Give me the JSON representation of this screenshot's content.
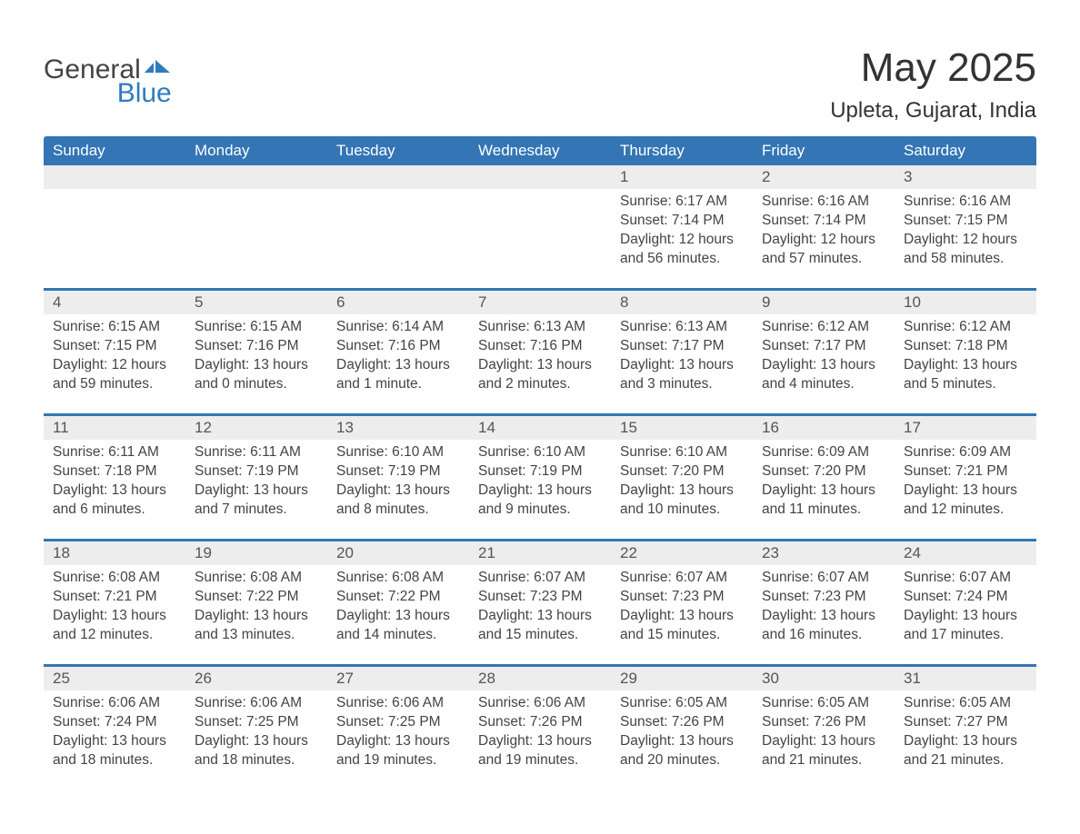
{
  "logo": {
    "text1": "General",
    "text2": "Blue"
  },
  "title": "May 2025",
  "location": "Upleta, Gujarat, India",
  "colors": {
    "header_bg": "#3375b5",
    "header_text": "#ffffff",
    "daynum_bg": "#ededed",
    "week_border": "#3375b5",
    "text": "#3a3a3a",
    "logo_blue": "#2f7bbf"
  },
  "day_headers": [
    "Sunday",
    "Monday",
    "Tuesday",
    "Wednesday",
    "Thursday",
    "Friday",
    "Saturday"
  ],
  "weeks": [
    [
      {
        "day": "",
        "sunrise": "",
        "sunset": "",
        "daylight": ""
      },
      {
        "day": "",
        "sunrise": "",
        "sunset": "",
        "daylight": ""
      },
      {
        "day": "",
        "sunrise": "",
        "sunset": "",
        "daylight": ""
      },
      {
        "day": "",
        "sunrise": "",
        "sunset": "",
        "daylight": ""
      },
      {
        "day": "1",
        "sunrise": "Sunrise: 6:17 AM",
        "sunset": "Sunset: 7:14 PM",
        "daylight": "Daylight: 12 hours and 56 minutes."
      },
      {
        "day": "2",
        "sunrise": "Sunrise: 6:16 AM",
        "sunset": "Sunset: 7:14 PM",
        "daylight": "Daylight: 12 hours and 57 minutes."
      },
      {
        "day": "3",
        "sunrise": "Sunrise: 6:16 AM",
        "sunset": "Sunset: 7:15 PM",
        "daylight": "Daylight: 12 hours and 58 minutes."
      }
    ],
    [
      {
        "day": "4",
        "sunrise": "Sunrise: 6:15 AM",
        "sunset": "Sunset: 7:15 PM",
        "daylight": "Daylight: 12 hours and 59 minutes."
      },
      {
        "day": "5",
        "sunrise": "Sunrise: 6:15 AM",
        "sunset": "Sunset: 7:16 PM",
        "daylight": "Daylight: 13 hours and 0 minutes."
      },
      {
        "day": "6",
        "sunrise": "Sunrise: 6:14 AM",
        "sunset": "Sunset: 7:16 PM",
        "daylight": "Daylight: 13 hours and 1 minute."
      },
      {
        "day": "7",
        "sunrise": "Sunrise: 6:13 AM",
        "sunset": "Sunset: 7:16 PM",
        "daylight": "Daylight: 13 hours and 2 minutes."
      },
      {
        "day": "8",
        "sunrise": "Sunrise: 6:13 AM",
        "sunset": "Sunset: 7:17 PM",
        "daylight": "Daylight: 13 hours and 3 minutes."
      },
      {
        "day": "9",
        "sunrise": "Sunrise: 6:12 AM",
        "sunset": "Sunset: 7:17 PM",
        "daylight": "Daylight: 13 hours and 4 minutes."
      },
      {
        "day": "10",
        "sunrise": "Sunrise: 6:12 AM",
        "sunset": "Sunset: 7:18 PM",
        "daylight": "Daylight: 13 hours and 5 minutes."
      }
    ],
    [
      {
        "day": "11",
        "sunrise": "Sunrise: 6:11 AM",
        "sunset": "Sunset: 7:18 PM",
        "daylight": "Daylight: 13 hours and 6 minutes."
      },
      {
        "day": "12",
        "sunrise": "Sunrise: 6:11 AM",
        "sunset": "Sunset: 7:19 PM",
        "daylight": "Daylight: 13 hours and 7 minutes."
      },
      {
        "day": "13",
        "sunrise": "Sunrise: 6:10 AM",
        "sunset": "Sunset: 7:19 PM",
        "daylight": "Daylight: 13 hours and 8 minutes."
      },
      {
        "day": "14",
        "sunrise": "Sunrise: 6:10 AM",
        "sunset": "Sunset: 7:19 PM",
        "daylight": "Daylight: 13 hours and 9 minutes."
      },
      {
        "day": "15",
        "sunrise": "Sunrise: 6:10 AM",
        "sunset": "Sunset: 7:20 PM",
        "daylight": "Daylight: 13 hours and 10 minutes."
      },
      {
        "day": "16",
        "sunrise": "Sunrise: 6:09 AM",
        "sunset": "Sunset: 7:20 PM",
        "daylight": "Daylight: 13 hours and 11 minutes."
      },
      {
        "day": "17",
        "sunrise": "Sunrise: 6:09 AM",
        "sunset": "Sunset: 7:21 PM",
        "daylight": "Daylight: 13 hours and 12 minutes."
      }
    ],
    [
      {
        "day": "18",
        "sunrise": "Sunrise: 6:08 AM",
        "sunset": "Sunset: 7:21 PM",
        "daylight": "Daylight: 13 hours and 12 minutes."
      },
      {
        "day": "19",
        "sunrise": "Sunrise: 6:08 AM",
        "sunset": "Sunset: 7:22 PM",
        "daylight": "Daylight: 13 hours and 13 minutes."
      },
      {
        "day": "20",
        "sunrise": "Sunrise: 6:08 AM",
        "sunset": "Sunset: 7:22 PM",
        "daylight": "Daylight: 13 hours and 14 minutes."
      },
      {
        "day": "21",
        "sunrise": "Sunrise: 6:07 AM",
        "sunset": "Sunset: 7:23 PM",
        "daylight": "Daylight: 13 hours and 15 minutes."
      },
      {
        "day": "22",
        "sunrise": "Sunrise: 6:07 AM",
        "sunset": "Sunset: 7:23 PM",
        "daylight": "Daylight: 13 hours and 15 minutes."
      },
      {
        "day": "23",
        "sunrise": "Sunrise: 6:07 AM",
        "sunset": "Sunset: 7:23 PM",
        "daylight": "Daylight: 13 hours and 16 minutes."
      },
      {
        "day": "24",
        "sunrise": "Sunrise: 6:07 AM",
        "sunset": "Sunset: 7:24 PM",
        "daylight": "Daylight: 13 hours and 17 minutes."
      }
    ],
    [
      {
        "day": "25",
        "sunrise": "Sunrise: 6:06 AM",
        "sunset": "Sunset: 7:24 PM",
        "daylight": "Daylight: 13 hours and 18 minutes."
      },
      {
        "day": "26",
        "sunrise": "Sunrise: 6:06 AM",
        "sunset": "Sunset: 7:25 PM",
        "daylight": "Daylight: 13 hours and 18 minutes."
      },
      {
        "day": "27",
        "sunrise": "Sunrise: 6:06 AM",
        "sunset": "Sunset: 7:25 PM",
        "daylight": "Daylight: 13 hours and 19 minutes."
      },
      {
        "day": "28",
        "sunrise": "Sunrise: 6:06 AM",
        "sunset": "Sunset: 7:26 PM",
        "daylight": "Daylight: 13 hours and 19 minutes."
      },
      {
        "day": "29",
        "sunrise": "Sunrise: 6:05 AM",
        "sunset": "Sunset: 7:26 PM",
        "daylight": "Daylight: 13 hours and 20 minutes."
      },
      {
        "day": "30",
        "sunrise": "Sunrise: 6:05 AM",
        "sunset": "Sunset: 7:26 PM",
        "daylight": "Daylight: 13 hours and 21 minutes."
      },
      {
        "day": "31",
        "sunrise": "Sunrise: 6:05 AM",
        "sunset": "Sunset: 7:27 PM",
        "daylight": "Daylight: 13 hours and 21 minutes."
      }
    ]
  ]
}
